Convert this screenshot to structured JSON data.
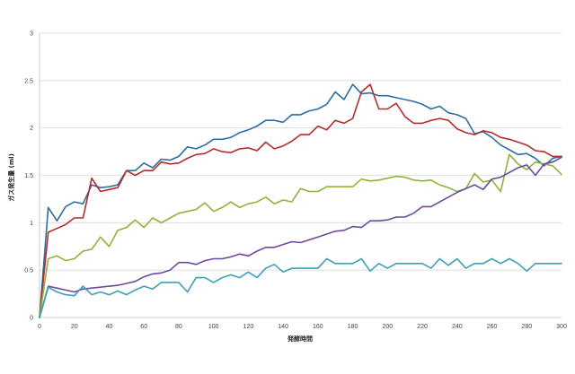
{
  "chart_data": {
    "type": "line",
    "title": "",
    "xlabel": "発酵時間",
    "ylabel": "ガス発生量 (ml)",
    "xlim": [
      0,
      300
    ],
    "ylim": [
      0,
      3
    ],
    "x_ticks": [
      "0",
      "20",
      "40",
      "60",
      "80",
      "100",
      "120",
      "140",
      "160",
      "180",
      "200",
      "220",
      "240",
      "260",
      "280",
      "300"
    ],
    "y_ticks": [
      "0",
      "0.5",
      "1",
      "1.5",
      "2",
      "2.5",
      "3"
    ],
    "grid": true,
    "legend": "none",
    "series": [
      {
        "color": "#2e6ca4",
        "points": [
          [
            0,
            0
          ],
          [
            5,
            1.16
          ],
          [
            10,
            1.02
          ],
          [
            15,
            1.17
          ],
          [
            20,
            1.22
          ],
          [
            25,
            1.2
          ],
          [
            30,
            1.4
          ],
          [
            35,
            1.37
          ],
          [
            40,
            1.38
          ],
          [
            45,
            1.4
          ],
          [
            50,
            1.55
          ],
          [
            55,
            1.55
          ],
          [
            60,
            1.63
          ],
          [
            65,
            1.58
          ],
          [
            70,
            1.67
          ],
          [
            75,
            1.66
          ],
          [
            80,
            1.7
          ],
          [
            85,
            1.8
          ],
          [
            90,
            1.78
          ],
          [
            95,
            1.82
          ],
          [
            100,
            1.88
          ],
          [
            105,
            1.88
          ],
          [
            110,
            1.9
          ],
          [
            115,
            1.95
          ],
          [
            120,
            1.98
          ],
          [
            125,
            2.02
          ],
          [
            130,
            2.08
          ],
          [
            135,
            2.08
          ],
          [
            140,
            2.06
          ],
          [
            145,
            2.14
          ],
          [
            150,
            2.14
          ],
          [
            155,
            2.18
          ],
          [
            160,
            2.2
          ],
          [
            165,
            2.25
          ],
          [
            170,
            2.38
          ],
          [
            175,
            2.3
          ],
          [
            180,
            2.46
          ],
          [
            185,
            2.36
          ],
          [
            190,
            2.37
          ],
          [
            195,
            2.34
          ],
          [
            200,
            2.34
          ],
          [
            205,
            2.32
          ],
          [
            210,
            2.3
          ],
          [
            215,
            2.28
          ],
          [
            220,
            2.25
          ],
          [
            225,
            2.2
          ],
          [
            230,
            2.23
          ],
          [
            235,
            2.16
          ],
          [
            240,
            2.14
          ],
          [
            245,
            2.1
          ],
          [
            250,
            1.94
          ],
          [
            255,
            1.96
          ],
          [
            260,
            1.9
          ],
          [
            265,
            1.82
          ],
          [
            270,
            1.77
          ],
          [
            275,
            1.72
          ],
          [
            280,
            1.73
          ],
          [
            285,
            1.68
          ],
          [
            290,
            1.6
          ],
          [
            295,
            1.68
          ],
          [
            300,
            1.7
          ]
        ]
      },
      {
        "color": "#b22d2d",
        "points": [
          [
            0,
            0
          ],
          [
            5,
            0.9
          ],
          [
            10,
            0.94
          ],
          [
            15,
            0.98
          ],
          [
            20,
            1.05
          ],
          [
            25,
            1.05
          ],
          [
            30,
            1.47
          ],
          [
            35,
            1.33
          ],
          [
            40,
            1.35
          ],
          [
            45,
            1.37
          ],
          [
            50,
            1.55
          ],
          [
            55,
            1.5
          ],
          [
            60,
            1.55
          ],
          [
            65,
            1.55
          ],
          [
            70,
            1.64
          ],
          [
            75,
            1.62
          ],
          [
            80,
            1.63
          ],
          [
            85,
            1.68
          ],
          [
            90,
            1.72
          ],
          [
            95,
            1.73
          ],
          [
            100,
            1.78
          ],
          [
            105,
            1.75
          ],
          [
            110,
            1.74
          ],
          [
            115,
            1.78
          ],
          [
            120,
            1.79
          ],
          [
            125,
            1.76
          ],
          [
            130,
            1.85
          ],
          [
            135,
            1.78
          ],
          [
            140,
            1.81
          ],
          [
            145,
            1.86
          ],
          [
            150,
            1.93
          ],
          [
            155,
            1.93
          ],
          [
            160,
            2.02
          ],
          [
            165,
            1.98
          ],
          [
            170,
            2.08
          ],
          [
            175,
            2.05
          ],
          [
            180,
            2.1
          ],
          [
            185,
            2.38
          ],
          [
            190,
            2.46
          ],
          [
            195,
            2.2
          ],
          [
            200,
            2.2
          ],
          [
            205,
            2.26
          ],
          [
            210,
            2.12
          ],
          [
            215,
            2.05
          ],
          [
            220,
            2.05
          ],
          [
            225,
            2.08
          ],
          [
            230,
            2.1
          ],
          [
            235,
            2.08
          ],
          [
            240,
            1.99
          ],
          [
            245,
            1.95
          ],
          [
            250,
            1.93
          ],
          [
            255,
            1.97
          ],
          [
            260,
            1.95
          ],
          [
            265,
            1.9
          ],
          [
            270,
            1.88
          ],
          [
            275,
            1.85
          ],
          [
            280,
            1.82
          ],
          [
            285,
            1.76
          ],
          [
            290,
            1.75
          ],
          [
            295,
            1.7
          ],
          [
            300,
            1.7
          ]
        ]
      },
      {
        "color": "#8db33b",
        "points": [
          [
            0,
            0
          ],
          [
            5,
            0.62
          ],
          [
            10,
            0.65
          ],
          [
            15,
            0.6
          ],
          [
            20,
            0.62
          ],
          [
            25,
            0.7
          ],
          [
            30,
            0.72
          ],
          [
            35,
            0.85
          ],
          [
            40,
            0.75
          ],
          [
            45,
            0.92
          ],
          [
            50,
            0.95
          ],
          [
            55,
            1.03
          ],
          [
            60,
            0.95
          ],
          [
            65,
            1.05
          ],
          [
            70,
            1.0
          ],
          [
            75,
            1.05
          ],
          [
            80,
            1.1
          ],
          [
            85,
            1.12
          ],
          [
            90,
            1.14
          ],
          [
            95,
            1.21
          ],
          [
            100,
            1.12
          ],
          [
            105,
            1.16
          ],
          [
            110,
            1.22
          ],
          [
            115,
            1.16
          ],
          [
            120,
            1.2
          ],
          [
            125,
            1.22
          ],
          [
            130,
            1.27
          ],
          [
            135,
            1.2
          ],
          [
            140,
            1.24
          ],
          [
            145,
            1.22
          ],
          [
            150,
            1.36
          ],
          [
            155,
            1.33
          ],
          [
            160,
            1.33
          ],
          [
            165,
            1.38
          ],
          [
            170,
            1.38
          ],
          [
            175,
            1.38
          ],
          [
            180,
            1.38
          ],
          [
            185,
            1.46
          ],
          [
            190,
            1.44
          ],
          [
            195,
            1.45
          ],
          [
            200,
            1.47
          ],
          [
            205,
            1.49
          ],
          [
            210,
            1.48
          ],
          [
            215,
            1.45
          ],
          [
            220,
            1.44
          ],
          [
            225,
            1.45
          ],
          [
            230,
            1.4
          ],
          [
            235,
            1.37
          ],
          [
            240,
            1.33
          ],
          [
            245,
            1.36
          ],
          [
            250,
            1.52
          ],
          [
            255,
            1.43
          ],
          [
            260,
            1.45
          ],
          [
            265,
            1.33
          ],
          [
            270,
            1.72
          ],
          [
            275,
            1.62
          ],
          [
            280,
            1.56
          ],
          [
            285,
            1.64
          ],
          [
            290,
            1.62
          ],
          [
            295,
            1.6
          ],
          [
            300,
            1.51
          ]
        ]
      },
      {
        "color": "#6b4a9c",
        "points": [
          [
            0,
            0
          ],
          [
            5,
            0.33
          ],
          [
            10,
            0.31
          ],
          [
            15,
            0.29
          ],
          [
            20,
            0.27
          ],
          [
            25,
            0.3
          ],
          [
            30,
            0.31
          ],
          [
            35,
            0.32
          ],
          [
            40,
            0.33
          ],
          [
            45,
            0.34
          ],
          [
            50,
            0.36
          ],
          [
            55,
            0.38
          ],
          [
            60,
            0.43
          ],
          [
            65,
            0.46
          ],
          [
            70,
            0.47
          ],
          [
            75,
            0.5
          ],
          [
            80,
            0.58
          ],
          [
            85,
            0.58
          ],
          [
            90,
            0.56
          ],
          [
            95,
            0.6
          ],
          [
            100,
            0.62
          ],
          [
            105,
            0.62
          ],
          [
            110,
            0.64
          ],
          [
            115,
            0.67
          ],
          [
            120,
            0.65
          ],
          [
            125,
            0.7
          ],
          [
            130,
            0.74
          ],
          [
            135,
            0.74
          ],
          [
            140,
            0.77
          ],
          [
            145,
            0.8
          ],
          [
            150,
            0.79
          ],
          [
            155,
            0.82
          ],
          [
            160,
            0.85
          ],
          [
            165,
            0.88
          ],
          [
            170,
            0.91
          ],
          [
            175,
            0.92
          ],
          [
            180,
            0.96
          ],
          [
            185,
            0.95
          ],
          [
            190,
            1.02
          ],
          [
            195,
            1.02
          ],
          [
            200,
            1.03
          ],
          [
            205,
            1.06
          ],
          [
            210,
            1.06
          ],
          [
            215,
            1.1
          ],
          [
            220,
            1.17
          ],
          [
            225,
            1.17
          ],
          [
            230,
            1.22
          ],
          [
            235,
            1.27
          ],
          [
            240,
            1.32
          ],
          [
            245,
            1.36
          ],
          [
            250,
            1.4
          ],
          [
            255,
            1.35
          ],
          [
            260,
            1.46
          ],
          [
            265,
            1.48
          ],
          [
            270,
            1.53
          ],
          [
            275,
            1.58
          ],
          [
            280,
            1.61
          ],
          [
            285,
            1.5
          ],
          [
            290,
            1.62
          ],
          [
            295,
            1.64
          ],
          [
            300,
            1.69
          ]
        ]
      },
      {
        "color": "#3d9fb8",
        "points": [
          [
            0,
            0
          ],
          [
            5,
            0.32
          ],
          [
            10,
            0.27
          ],
          [
            15,
            0.24
          ],
          [
            20,
            0.23
          ],
          [
            25,
            0.33
          ],
          [
            30,
            0.24
          ],
          [
            35,
            0.27
          ],
          [
            40,
            0.24
          ],
          [
            45,
            0.28
          ],
          [
            50,
            0.24
          ],
          [
            55,
            0.29
          ],
          [
            60,
            0.33
          ],
          [
            65,
            0.3
          ],
          [
            70,
            0.37
          ],
          [
            75,
            0.37
          ],
          [
            80,
            0.37
          ],
          [
            85,
            0.27
          ],
          [
            90,
            0.42
          ],
          [
            95,
            0.42
          ],
          [
            100,
            0.37
          ],
          [
            105,
            0.42
          ],
          [
            110,
            0.45
          ],
          [
            115,
            0.42
          ],
          [
            120,
            0.48
          ],
          [
            125,
            0.42
          ],
          [
            130,
            0.52
          ],
          [
            135,
            0.56
          ],
          [
            140,
            0.48
          ],
          [
            145,
            0.52
          ],
          [
            150,
            0.52
          ],
          [
            155,
            0.52
          ],
          [
            160,
            0.52
          ],
          [
            165,
            0.62
          ],
          [
            170,
            0.57
          ],
          [
            175,
            0.57
          ],
          [
            180,
            0.57
          ],
          [
            185,
            0.62
          ],
          [
            190,
            0.49
          ],
          [
            195,
            0.57
          ],
          [
            200,
            0.52
          ],
          [
            205,
            0.57
          ],
          [
            210,
            0.57
          ],
          [
            215,
            0.57
          ],
          [
            220,
            0.57
          ],
          [
            225,
            0.52
          ],
          [
            230,
            0.62
          ],
          [
            235,
            0.55
          ],
          [
            240,
            0.62
          ],
          [
            245,
            0.52
          ],
          [
            250,
            0.57
          ],
          [
            255,
            0.57
          ],
          [
            260,
            0.62
          ],
          [
            265,
            0.57
          ],
          [
            270,
            0.62
          ],
          [
            275,
            0.57
          ],
          [
            280,
            0.49
          ],
          [
            285,
            0.57
          ],
          [
            290,
            0.57
          ],
          [
            295,
            0.57
          ],
          [
            300,
            0.57
          ]
        ]
      }
    ]
  }
}
